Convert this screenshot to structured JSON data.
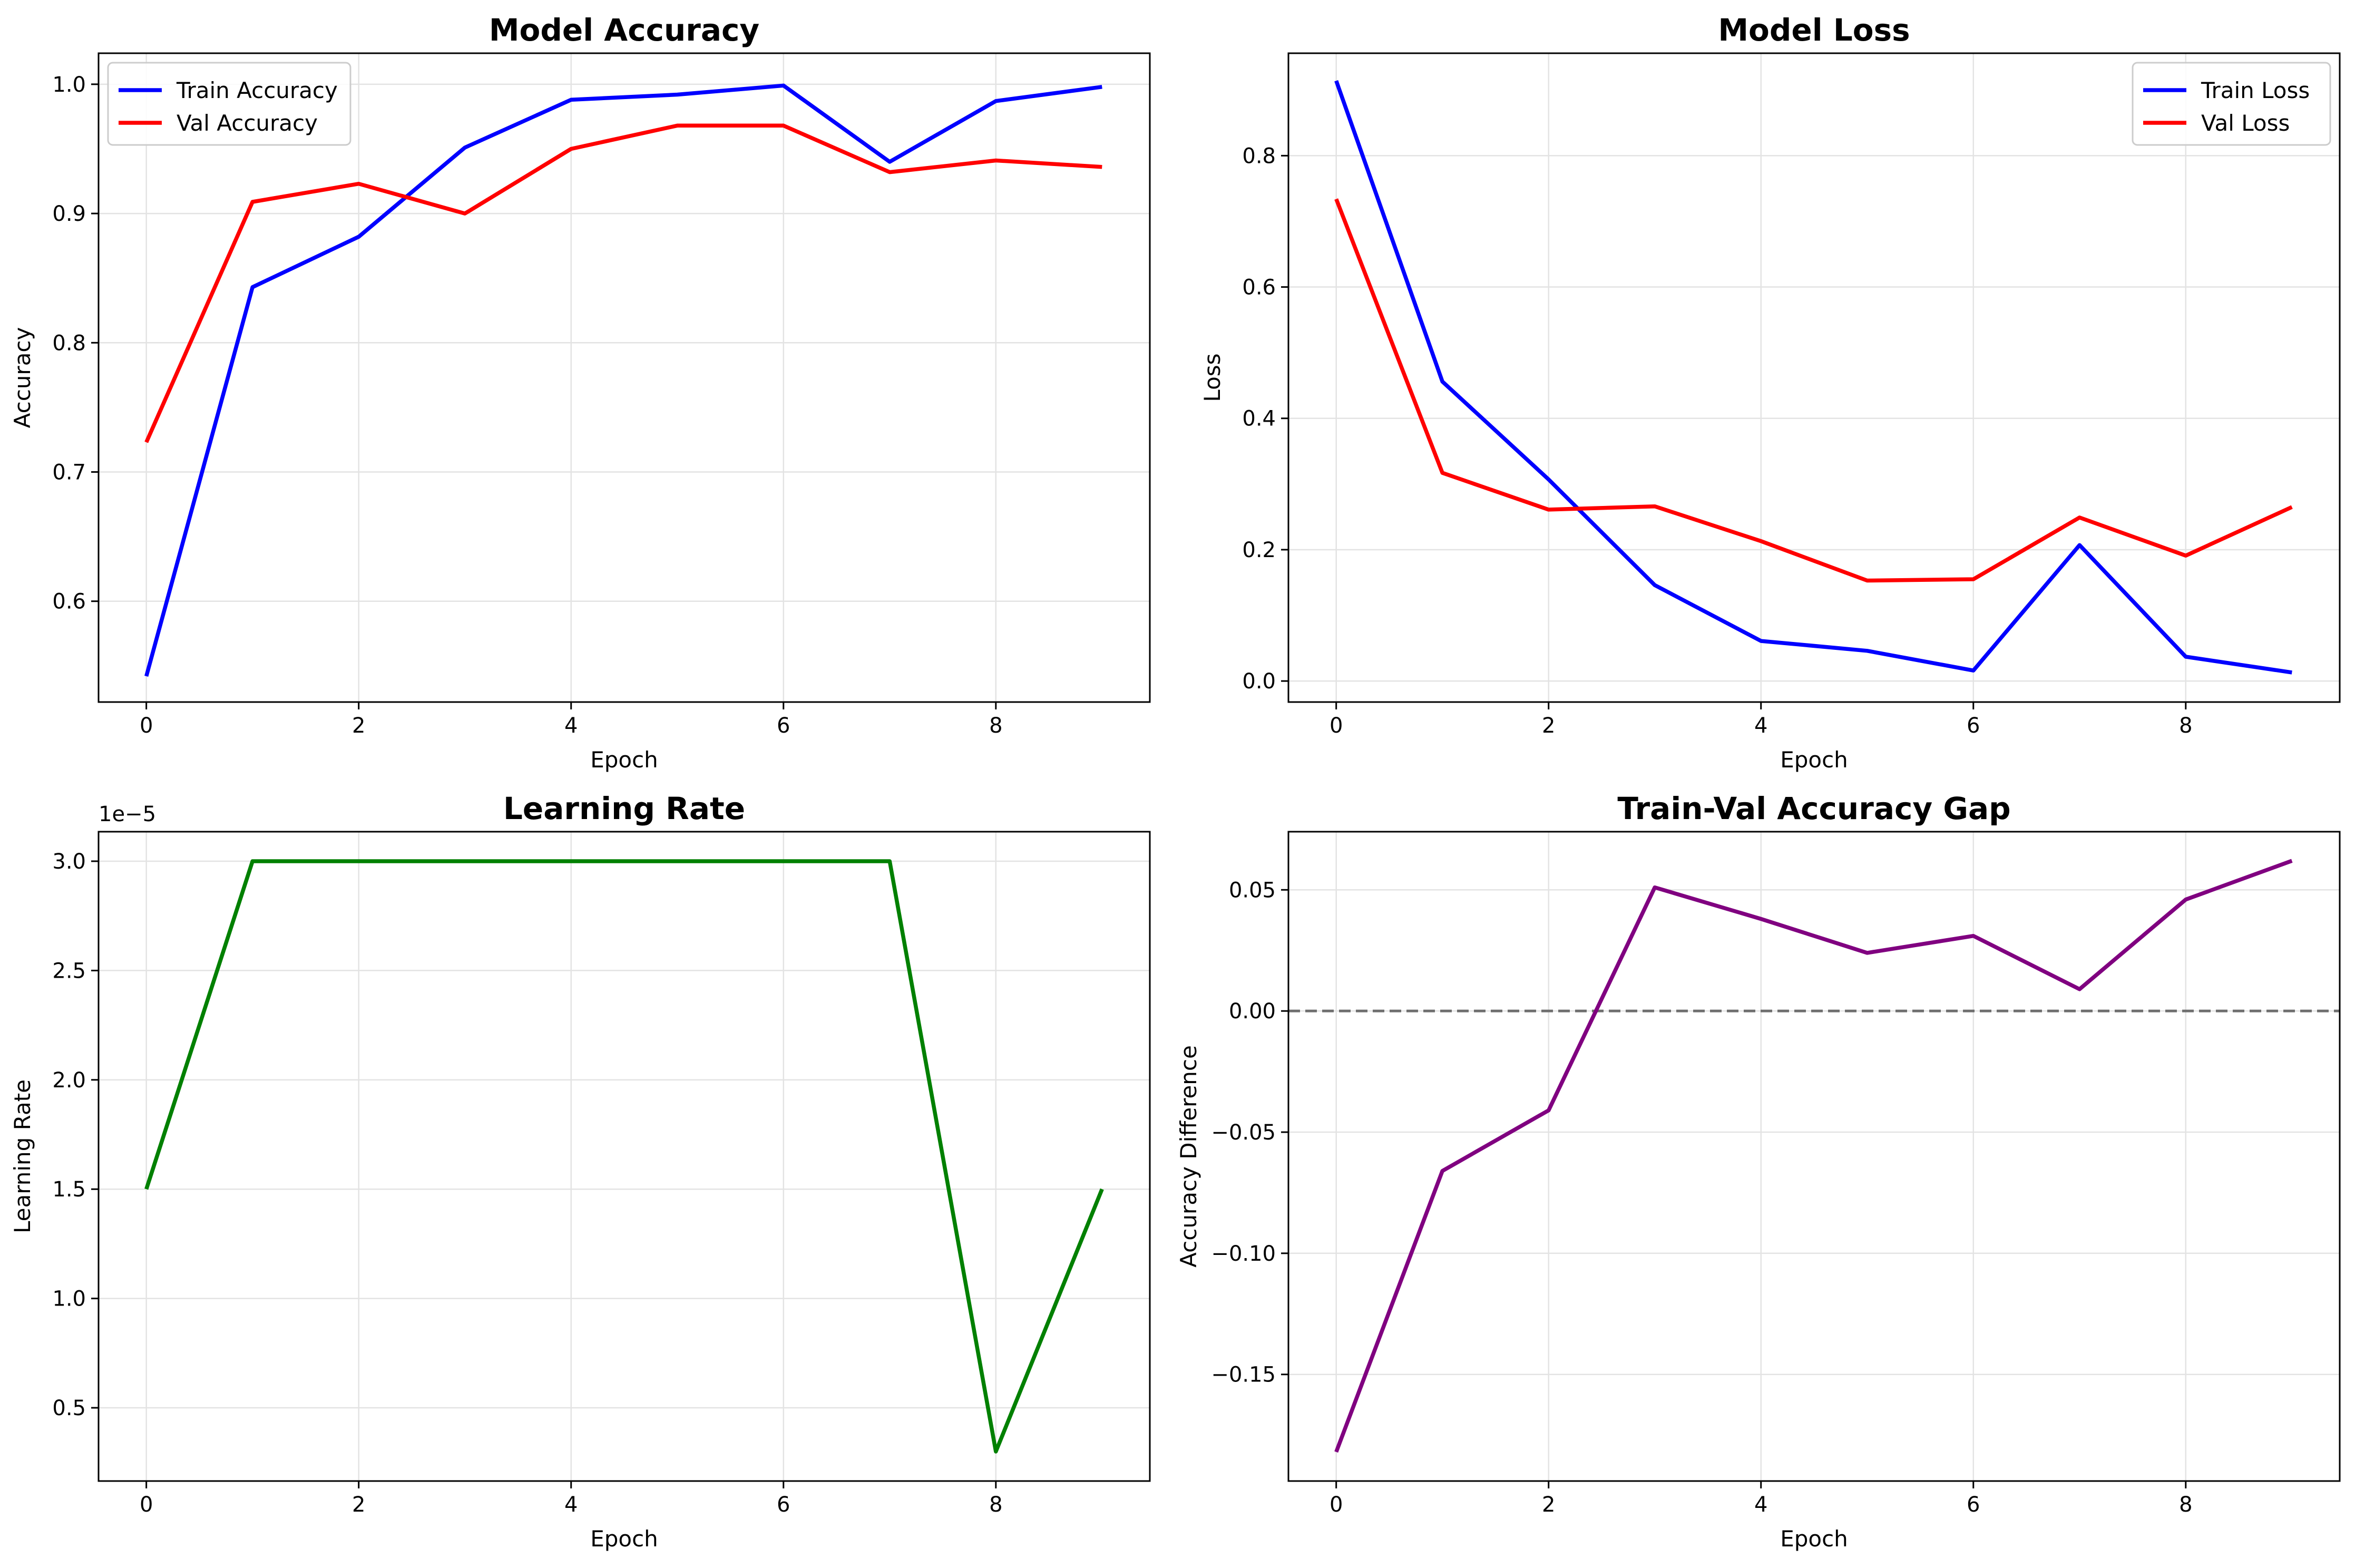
{
  "chart_data": [
    {
      "type": "line",
      "title": "Model Accuracy",
      "xlabel": "Epoch",
      "ylabel": "Accuracy",
      "x": [
        0,
        1,
        2,
        3,
        4,
        5,
        6,
        7,
        8,
        9
      ],
      "xlim": [
        -0.45,
        9.45
      ],
      "ylim": [
        0.522,
        1.024
      ],
      "xticks": [
        0,
        2,
        4,
        6,
        8
      ],
      "xtick_labels": [
        "0",
        "2",
        "4",
        "6",
        "8"
      ],
      "yticks": [
        0.6,
        0.7,
        0.8,
        0.9,
        1.0
      ],
      "ytick_labels": [
        "0.6",
        "0.7",
        "0.8",
        "0.9",
        "1.0"
      ],
      "grid": true,
      "legend": "upper left",
      "series": [
        {
          "name": "Train Accuracy",
          "color": "#0000ff",
          "values": [
            0.542,
            0.843,
            0.882,
            0.951,
            0.988,
            0.992,
            0.999,
            0.94,
            0.987,
            0.998
          ]
        },
        {
          "name": "Val Accuracy",
          "color": "#ff0000",
          "values": [
            0.723,
            0.909,
            0.923,
            0.9,
            0.95,
            0.968,
            0.968,
            0.932,
            0.941,
            0.936
          ]
        }
      ]
    },
    {
      "type": "line",
      "title": "Model Loss",
      "xlabel": "Epoch",
      "ylabel": "Loss",
      "x": [
        0,
        1,
        2,
        3,
        4,
        5,
        6,
        7,
        8,
        9
      ],
      "xlim": [
        -0.45,
        9.45
      ],
      "ylim": [
        -0.032,
        0.956
      ],
      "xticks": [
        0,
        2,
        4,
        6,
        8
      ],
      "xtick_labels": [
        "0",
        "2",
        "4",
        "6",
        "8"
      ],
      "yticks": [
        0.0,
        0.2,
        0.4,
        0.6,
        0.8
      ],
      "ytick_labels": [
        "0.0",
        "0.2",
        "0.4",
        "0.6",
        "0.8"
      ],
      "grid": true,
      "legend": "upper right",
      "series": [
        {
          "name": "Train Loss",
          "color": "#0000ff",
          "values": [
            0.914,
            0.456,
            0.307,
            0.146,
            0.061,
            0.046,
            0.016,
            0.207,
            0.037,
            0.013
          ]
        },
        {
          "name": "Val Loss",
          "color": "#ff0000",
          "values": [
            0.734,
            0.317,
            0.261,
            0.266,
            0.213,
            0.153,
            0.155,
            0.249,
            0.191,
            0.265
          ]
        }
      ]
    },
    {
      "type": "line",
      "title": "Learning Rate",
      "xlabel": "Epoch",
      "ylabel": "Learning Rate",
      "offset_text": "1e−5",
      "x": [
        0,
        1,
        2,
        3,
        4,
        5,
        6,
        7,
        8,
        9
      ],
      "xlim": [
        -0.45,
        9.45
      ],
      "ylim": [
        0.165,
        3.135
      ],
      "xticks": [
        0,
        2,
        4,
        6,
        8
      ],
      "xtick_labels": [
        "0",
        "2",
        "4",
        "6",
        "8"
      ],
      "yticks": [
        0.5,
        1.0,
        1.5,
        2.0,
        2.5,
        3.0
      ],
      "ytick_labels": [
        "0.5",
        "1.0",
        "1.5",
        "2.0",
        "2.5",
        "3.0"
      ],
      "grid": true,
      "series": [
        {
          "color": "#008000",
          "values": [
            1.5,
            3.0,
            3.0,
            3.0,
            3.0,
            3.0,
            3.0,
            3.0,
            0.3,
            1.5
          ]
        }
      ]
    },
    {
      "type": "line",
      "title": "Train-Val Accuracy Gap",
      "xlabel": "Epoch",
      "ylabel": "Accuracy Difference",
      "x": [
        0,
        1,
        2,
        3,
        4,
        5,
        6,
        7,
        8,
        9
      ],
      "xlim": [
        -0.45,
        9.45
      ],
      "ylim": [
        -0.194,
        0.074
      ],
      "xticks": [
        0,
        2,
        4,
        6,
        8
      ],
      "xtick_labels": [
        "0",
        "2",
        "4",
        "6",
        "8"
      ],
      "yticks": [
        -0.15,
        -0.1,
        -0.05,
        0.0,
        0.05
      ],
      "ytick_labels": [
        "−0.15",
        "−0.10",
        "−0.05",
        "0.00",
        "0.05"
      ],
      "grid": true,
      "reference_line": {
        "y": 0,
        "style": "dashed",
        "color": "#6e6e6e"
      },
      "series": [
        {
          "color": "#800080",
          "values": [
            -0.182,
            -0.066,
            -0.041,
            0.051,
            0.038,
            0.024,
            0.031,
            0.009,
            0.046,
            0.062
          ]
        }
      ]
    }
  ]
}
